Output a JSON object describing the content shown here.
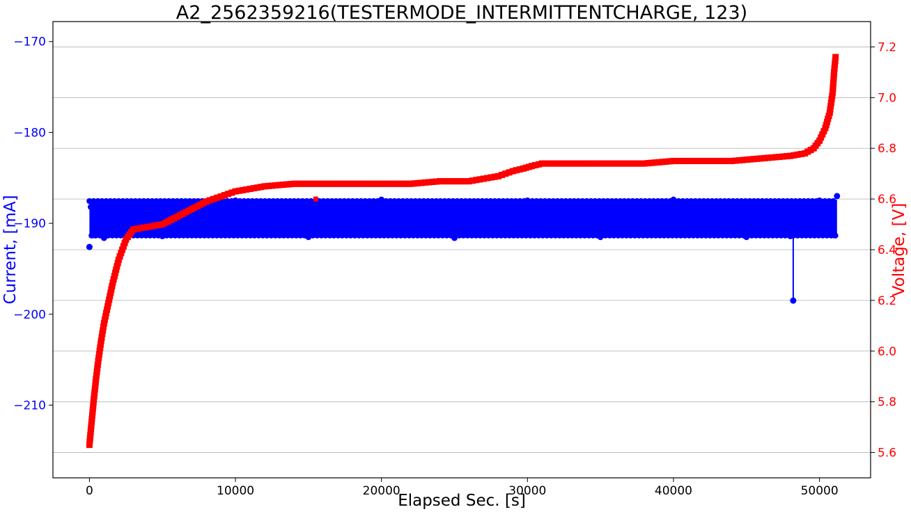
{
  "chart_data": {
    "type": "line",
    "title": "A2_2562359216(TESTERMODE_INTERMITTENTCHARGE, 123)",
    "xlabel": "Elapsed Sec. [s]",
    "ylabel_left": "Current, [mA]",
    "ylabel_right": "Voltage, [V]",
    "xlim": [
      -2500,
      53500
    ],
    "ylim_left": [
      -218,
      -167.8
    ],
    "ylim_right": [
      5.5,
      7.3
    ],
    "x_ticks": [
      "0",
      "10000",
      "20000",
      "30000",
      "40000",
      "50000"
    ],
    "y_left_ticks": [
      "−170",
      "−180",
      "−190",
      "−200",
      "−210"
    ],
    "y_right_ticks": [
      "5.6",
      "5.8",
      "6.0",
      "6.2",
      "6.4",
      "6.6",
      "6.8",
      "7.0",
      "7.2"
    ],
    "grid": true,
    "grid_axis": "y (right axis)",
    "colors": {
      "current": "#0000ff",
      "voltage": "#ff0000",
      "grid": "#b0b0b0",
      "axis": "#000000"
    },
    "series": [
      {
        "axis": "left",
        "marker": "circle",
        "color": "#0000ff",
        "description_band": {
          "upper": -187.4,
          "lower": -191.5,
          "x_start": 0,
          "x_end": 51200
        },
        "x": [
          0,
          100,
          300,
          600,
          1000,
          2000,
          5000,
          10000,
          15000,
          20000,
          25000,
          30000,
          35000,
          40000,
          45000,
          48000,
          48200,
          48300,
          50000,
          51000,
          51200
        ],
        "values": [
          -192.6,
          -188.2,
          -191.3,
          -187.8,
          -191.6,
          -187.6,
          -191.4,
          -187.5,
          -191.5,
          -187.4,
          -191.6,
          -187.5,
          -191.5,
          -187.4,
          -191.5,
          -191.4,
          -198.5,
          -191.2,
          -187.5,
          -191.3,
          -187.0
        ]
      },
      {
        "axis": "right",
        "marker": "square",
        "color": "#ff0000",
        "x": [
          0,
          150,
          300,
          450,
          600,
          800,
          1000,
          1300,
          1600,
          2000,
          2500,
          3000,
          4000,
          5000,
          6000,
          7000,
          8000,
          9000,
          10000,
          11000,
          12000,
          14000,
          15500,
          16000,
          18000,
          20000,
          22000,
          24000,
          26000,
          27000,
          28000,
          29000,
          29700,
          30300,
          31000,
          33000,
          35000,
          38000,
          40000,
          42000,
          44000,
          46000,
          48000,
          49000,
          49600,
          50000,
          50400,
          50700,
          50900,
          51000,
          51100
        ],
        "values": [
          5.63,
          5.72,
          5.81,
          5.89,
          5.96,
          6.04,
          6.11,
          6.19,
          6.27,
          6.36,
          6.44,
          6.48,
          6.49,
          6.5,
          6.53,
          6.56,
          6.59,
          6.61,
          6.63,
          6.64,
          6.65,
          6.66,
          6.66,
          6.66,
          6.66,
          6.66,
          6.66,
          6.67,
          6.67,
          6.68,
          6.69,
          6.71,
          6.72,
          6.73,
          6.74,
          6.74,
          6.74,
          6.74,
          6.75,
          6.75,
          6.75,
          6.76,
          6.77,
          6.78,
          6.8,
          6.83,
          6.88,
          6.94,
          7.02,
          7.1,
          7.16
        ]
      }
    ]
  }
}
